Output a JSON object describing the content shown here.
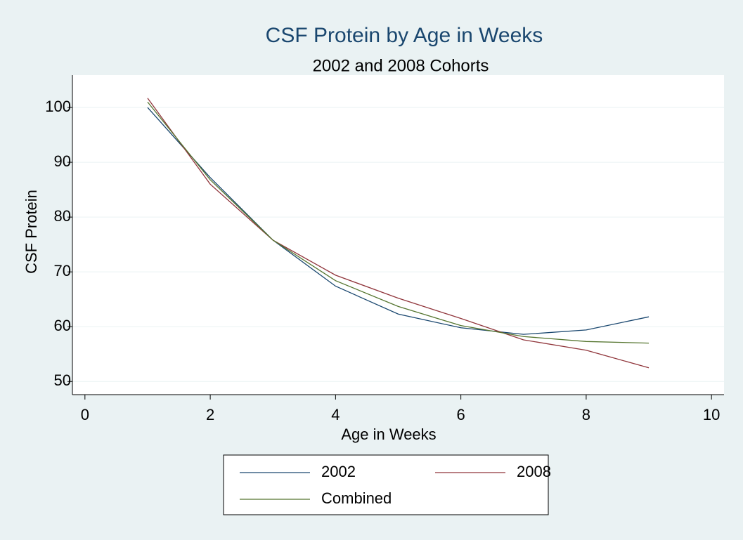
{
  "chart_data": {
    "type": "line",
    "title": "CSF Protein by Age in Weeks",
    "subtitle": "2002 and 2008 Cohorts",
    "xlabel": "Age in Weeks",
    "ylabel": "CSF Protein",
    "x": [
      1,
      2,
      3,
      4,
      5,
      6,
      7,
      8,
      9
    ],
    "series": [
      {
        "name": "2002",
        "color": "#1a476f",
        "values": [
          100,
          87.2,
          75.8,
          67.4,
          62.3,
          59.8,
          58.6,
          59.4,
          61.8
        ]
      },
      {
        "name": "2008",
        "color": "#90353b",
        "values": [
          101.7,
          86,
          75.8,
          69.4,
          65.2,
          61.5,
          57.6,
          55.7,
          52.5
        ]
      },
      {
        "name": "Combined",
        "color": "#55752f",
        "values": [
          101,
          86.8,
          75.8,
          68.4,
          63.7,
          60.2,
          58.2,
          57.3,
          57
        ]
      }
    ],
    "xlim": [
      -0.2,
      10.2
    ],
    "xticks": [
      0,
      2,
      4,
      6,
      8,
      10
    ],
    "ylim": [
      47.6,
      105.9
    ],
    "yticks": [
      50,
      60,
      70,
      80,
      90,
      100
    ],
    "grid": true,
    "legend": "bottom"
  }
}
